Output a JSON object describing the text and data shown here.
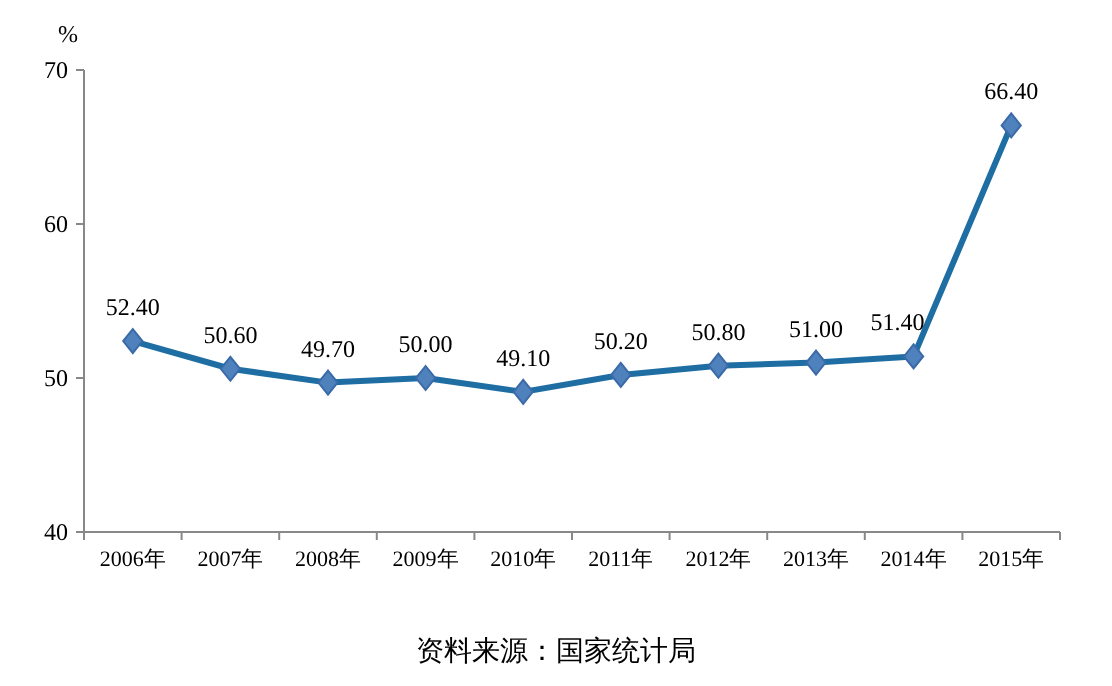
{
  "chart_data": {
    "type": "line",
    "ylabel": "%",
    "categories": [
      "2006年",
      "2007年",
      "2008年",
      "2009年",
      "2010年",
      "2011年",
      "2012年",
      "2013年",
      "2014年",
      "2015年"
    ],
    "series": [
      {
        "color": "#1f6ea3",
        "values": [
          52.4,
          50.6,
          49.7,
          50.0,
          49.1,
          50.2,
          50.8,
          51.0,
          51.4,
          66.4
        ],
        "value_labels": [
          "52.40",
          "50.60",
          "49.70",
          "50.00",
          "49.10",
          "50.20",
          "50.80",
          "51.00",
          "51.40",
          "66.40"
        ]
      }
    ],
    "ylim": [
      40,
      70
    ],
    "yticks": [
      40,
      50,
      60,
      70
    ],
    "marker": "diamond",
    "line_style": "solid",
    "annotations": [
      "资料来源：国家统计局"
    ]
  }
}
